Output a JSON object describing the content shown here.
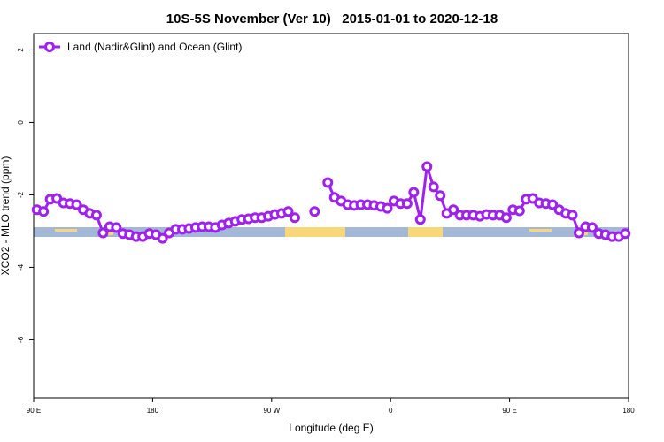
{
  "chart_data": {
    "type": "line",
    "title": "10S-5S November (Ver 10)   2015-01-01 to 2020-12-18",
    "x_label": "Longitude (deg E)",
    "y_label": "XCO2 - MLO trend (ppm)",
    "xlim": [
      90,
      540
    ],
    "xticks": [
      {
        "value": 90,
        "label": "90 E"
      },
      {
        "value": 180,
        "label": "180"
      },
      {
        "value": 270,
        "label": "90 W"
      },
      {
        "value": 360,
        "label": "0"
      },
      {
        "value": 450,
        "label": "90 E"
      },
      {
        "value": 540,
        "label": "180"
      }
    ],
    "ylim": [
      -7.6,
      2.45
    ],
    "yticks": [
      2,
      0,
      -2,
      -4,
      -6
    ],
    "legend": "top-left",
    "x": [
      92.5,
      97.5,
      102.5,
      107.5,
      112.5,
      117.5,
      122.5,
      127.5,
      132.5,
      137.5,
      142.5,
      147.5,
      152.5,
      157.5,
      162.5,
      167.5,
      172.5,
      177.5,
      182.5,
      187.5,
      192.5,
      197.5,
      202.5,
      207.5,
      212.5,
      217.5,
      222.5,
      227.5,
      232.5,
      237.5,
      242.5,
      247.5,
      252.5,
      257.5,
      262.5,
      267.5,
      272.5,
      277.5,
      282.5,
      287.5,
      292.5,
      297.5,
      302.5,
      307.5,
      312.5,
      317.5,
      322.5,
      327.5,
      332.5,
      337.5,
      342.5,
      347.5,
      352.5,
      357.5,
      362.5,
      367.5,
      372.5,
      377.5,
      382.5,
      387.5,
      392.5,
      397.5,
      402.5,
      407.5,
      412.5,
      417.5,
      422.5,
      427.5,
      432.5,
      437.5,
      442.5,
      447.5,
      452.5,
      457.5,
      462.5,
      467.5,
      472.5,
      477.5,
      482.5,
      487.5,
      492.5,
      497.5,
      502.5,
      507.5,
      512.5,
      517.5,
      522.5,
      527.5,
      532.5,
      537.5
    ],
    "series": [
      {
        "name": "Land (Nadir&Glint) and Ocean (Glint)",
        "color": "#a020f0",
        "values": [
          -2.41,
          -2.46,
          -2.12,
          -2.1,
          -2.22,
          -2.24,
          -2.27,
          -2.41,
          -2.51,
          -2.56,
          -3.05,
          -2.88,
          -2.9,
          -3.07,
          -3.1,
          -3.15,
          -3.15,
          -3.07,
          -3.1,
          -3.2,
          -3.05,
          -2.95,
          -2.95,
          -2.93,
          -2.9,
          -2.88,
          -2.88,
          -2.9,
          -2.83,
          -2.78,
          -2.73,
          -2.68,
          -2.66,
          -2.63,
          -2.63,
          -2.59,
          -2.54,
          -2.51,
          -2.46,
          -2.63,
          null,
          null,
          -2.46,
          null,
          -1.66,
          -2.07,
          -2.17,
          -2.27,
          -2.29,
          -2.27,
          -2.27,
          -2.29,
          -2.32,
          -2.37,
          -2.17,
          -2.24,
          -2.24,
          -1.93,
          -2.68,
          -1.22,
          -1.78,
          -2.02,
          -2.51,
          -2.41,
          -2.56,
          -2.56,
          -2.56,
          -2.59,
          -2.54,
          -2.56,
          -2.56,
          -2.63,
          -2.41,
          -2.44,
          -2.12,
          -2.1,
          -2.22,
          -2.24,
          -2.27,
          -2.41,
          -2.51,
          -2.56,
          -3.05,
          -2.88,
          -2.9,
          -3.07,
          -3.1,
          -3.15,
          -3.15,
          -3.07
        ]
      }
    ]
  }
}
